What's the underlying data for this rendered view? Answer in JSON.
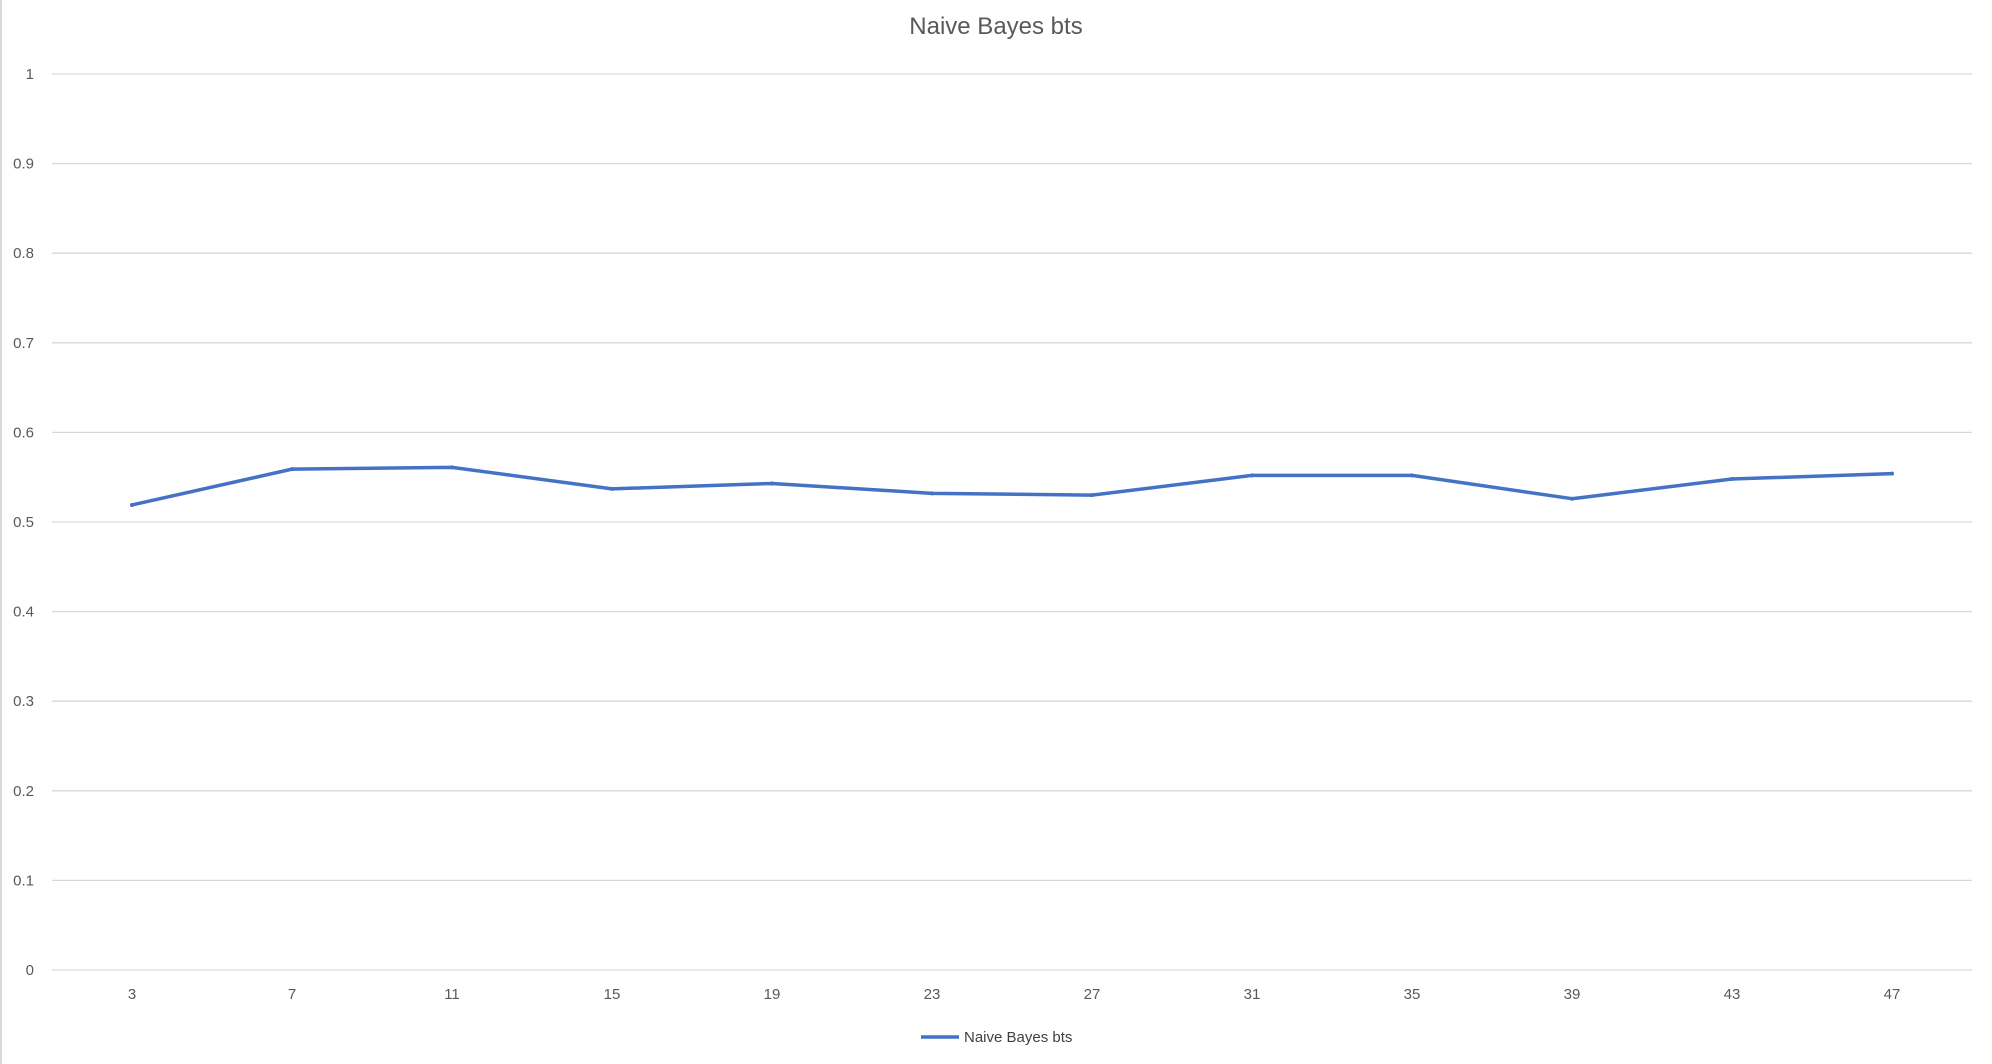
{
  "chart_data": {
    "type": "line",
    "title": "Naive Bayes bts",
    "xlabel": "",
    "ylabel": "",
    "categories": [
      "3",
      "7",
      "11",
      "15",
      "19",
      "23",
      "27",
      "31",
      "35",
      "39",
      "43",
      "47"
    ],
    "series": [
      {
        "name": "Naive Bayes bts",
        "color": "#4472c4",
        "values": [
          0.519,
          0.559,
          0.561,
          0.537,
          0.543,
          0.532,
          0.53,
          0.552,
          0.552,
          0.526,
          0.548,
          0.554
        ]
      }
    ],
    "ylim": [
      0,
      1
    ],
    "yticks": [
      "0",
      "0.1",
      "0.2",
      "0.3",
      "0.4",
      "0.5",
      "0.6",
      "0.7",
      "0.8",
      "0.9",
      "1"
    ],
    "grid": true,
    "legend_position": "bottom"
  }
}
